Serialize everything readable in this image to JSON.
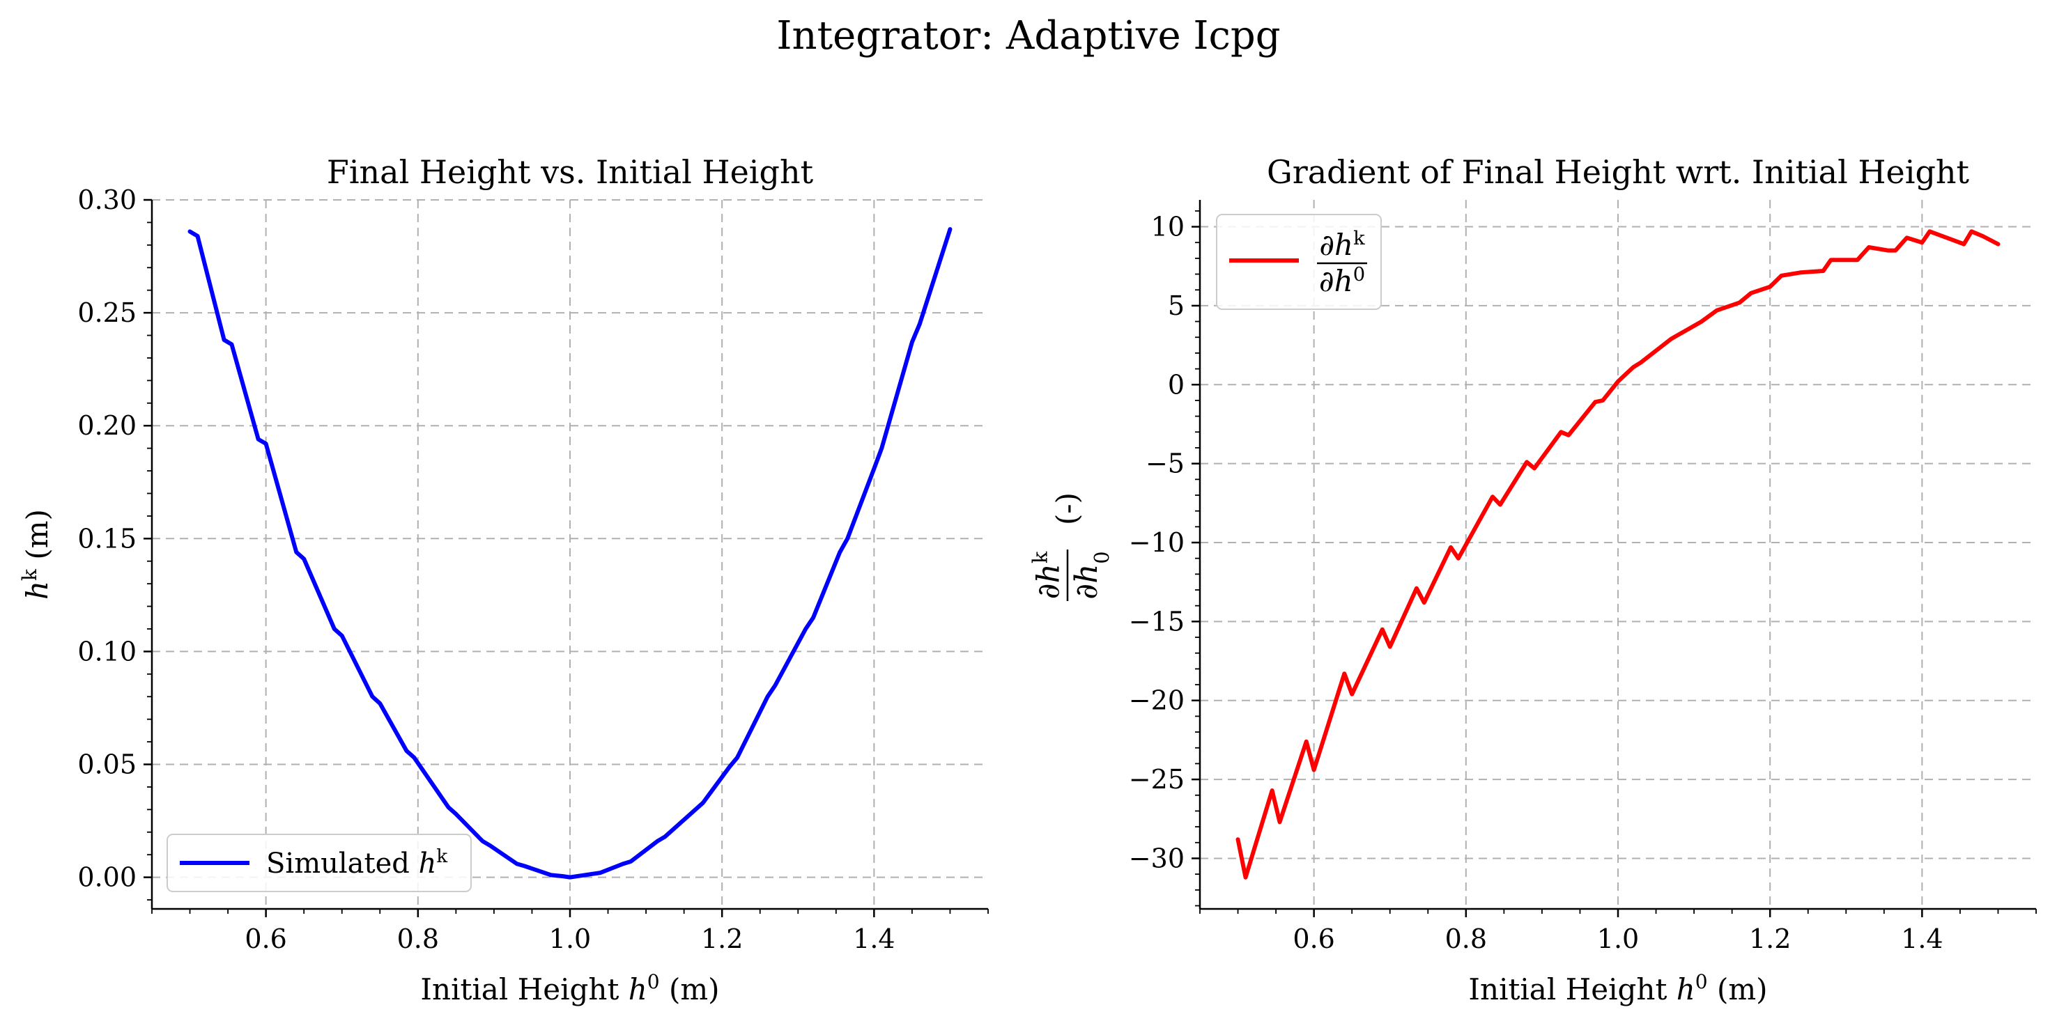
{
  "suptitle": "Integrator: Adaptive Icpg",
  "chart_data": [
    {
      "type": "line",
      "title": "Final Height vs. Initial Height",
      "xlabel": {
        "pre": "Initial Height ",
        "var": "h",
        "sup": "0",
        "post": " (m)"
      },
      "ylabel": {
        "var": "h",
        "sup": "k",
        "post": " (m)"
      },
      "xlim": [
        0.45,
        1.55
      ],
      "ylim": [
        -0.014,
        0.3
      ],
      "xticks": [
        0.6,
        0.8,
        1.0,
        1.2,
        1.4
      ],
      "xtick_labels": [
        "0.6",
        "0.8",
        "1.0",
        "1.2",
        "1.4"
      ],
      "yticks": [
        0.0,
        0.05,
        0.1,
        0.15,
        0.2,
        0.25,
        0.3
      ],
      "ytick_labels": [
        "0.00",
        "0.05",
        "0.10",
        "0.15",
        "0.20",
        "0.25",
        "0.30"
      ],
      "grid": true,
      "legend_position": "lower-left",
      "series": [
        {
          "name": {
            "pre": "Simulated ",
            "var": "h",
            "sup": "k"
          },
          "color": "#0000ff",
          "x": [
            0.5,
            0.51,
            0.545,
            0.555,
            0.59,
            0.6,
            0.64,
            0.65,
            0.69,
            0.7,
            0.74,
            0.75,
            0.785,
            0.795,
            0.84,
            0.85,
            0.885,
            0.895,
            0.93,
            0.94,
            0.975,
            0.99,
            1.0,
            1.03,
            1.04,
            1.07,
            1.08,
            1.115,
            1.125,
            1.165,
            1.175,
            1.21,
            1.22,
            1.26,
            1.27,
            1.31,
            1.32,
            1.355,
            1.365,
            1.4,
            1.41,
            1.45,
            1.46,
            1.5
          ],
          "y": [
            0.286,
            0.284,
            0.238,
            0.236,
            0.194,
            0.192,
            0.144,
            0.141,
            0.11,
            0.107,
            0.08,
            0.077,
            0.056,
            0.053,
            0.031,
            0.028,
            0.016,
            0.014,
            0.006,
            0.005,
            0.001,
            0.0005,
            0.0,
            0.0015,
            0.002,
            0.006,
            0.007,
            0.016,
            0.018,
            0.03,
            0.033,
            0.049,
            0.053,
            0.08,
            0.085,
            0.11,
            0.115,
            0.144,
            0.15,
            0.181,
            0.19,
            0.237,
            0.245,
            0.287
          ]
        }
      ]
    },
    {
      "type": "line",
      "title": "Gradient of Final Height wrt. Initial Height",
      "xlabel": {
        "pre": "Initial Height ",
        "var": "h",
        "sup": "0",
        "post": " (m)"
      },
      "ylabel": {
        "num_var": "∂h",
        "num_sup": "k",
        "den_var": "∂h",
        "den_sub": "0",
        "post": " (-)"
      },
      "xlim": [
        0.45,
        1.55
      ],
      "ylim": [
        -33.2,
        11.7
      ],
      "xticks": [
        0.6,
        0.8,
        1.0,
        1.2,
        1.4
      ],
      "xtick_labels": [
        "0.6",
        "0.8",
        "1.0",
        "1.2",
        "1.4"
      ],
      "yticks": [
        -30,
        -25,
        -20,
        -15,
        -10,
        -5,
        0,
        5,
        10
      ],
      "ytick_labels": [
        "−30",
        "−25",
        "−20",
        "−15",
        "−10",
        "−5",
        "0",
        "5",
        "10"
      ],
      "grid": true,
      "legend_position": "upper-left",
      "series": [
        {
          "name": {
            "num_var": "∂h",
            "num_sup": "k",
            "den_var": "∂h",
            "den_sup": "0"
          },
          "color": "#ff0000",
          "x": [
            0.5,
            0.51,
            0.545,
            0.555,
            0.59,
            0.6,
            0.64,
            0.65,
            0.69,
            0.7,
            0.735,
            0.745,
            0.78,
            0.79,
            0.835,
            0.845,
            0.88,
            0.89,
            0.925,
            0.935,
            0.97,
            0.98,
            1.0,
            1.02,
            1.03,
            1.07,
            1.11,
            1.13,
            1.16,
            1.175,
            1.2,
            1.215,
            1.24,
            1.27,
            1.28,
            1.31,
            1.315,
            1.33,
            1.355,
            1.365,
            1.38,
            1.4,
            1.41,
            1.455,
            1.465,
            1.48,
            1.5
          ],
          "y": [
            -28.8,
            -31.2,
            -25.7,
            -27.7,
            -22.6,
            -24.4,
            -18.3,
            -19.6,
            -15.5,
            -16.6,
            -12.9,
            -13.8,
            -10.3,
            -11.0,
            -7.1,
            -7.6,
            -4.9,
            -5.3,
            -3.0,
            -3.2,
            -1.1,
            -1.0,
            0.2,
            1.1,
            1.4,
            2.9,
            4.0,
            4.7,
            5.2,
            5.8,
            6.2,
            6.9,
            7.1,
            7.2,
            7.9,
            7.9,
            7.9,
            8.7,
            8.5,
            8.5,
            9.3,
            9.0,
            9.7,
            8.9,
            9.7,
            9.4,
            8.9
          ]
        }
      ]
    }
  ]
}
